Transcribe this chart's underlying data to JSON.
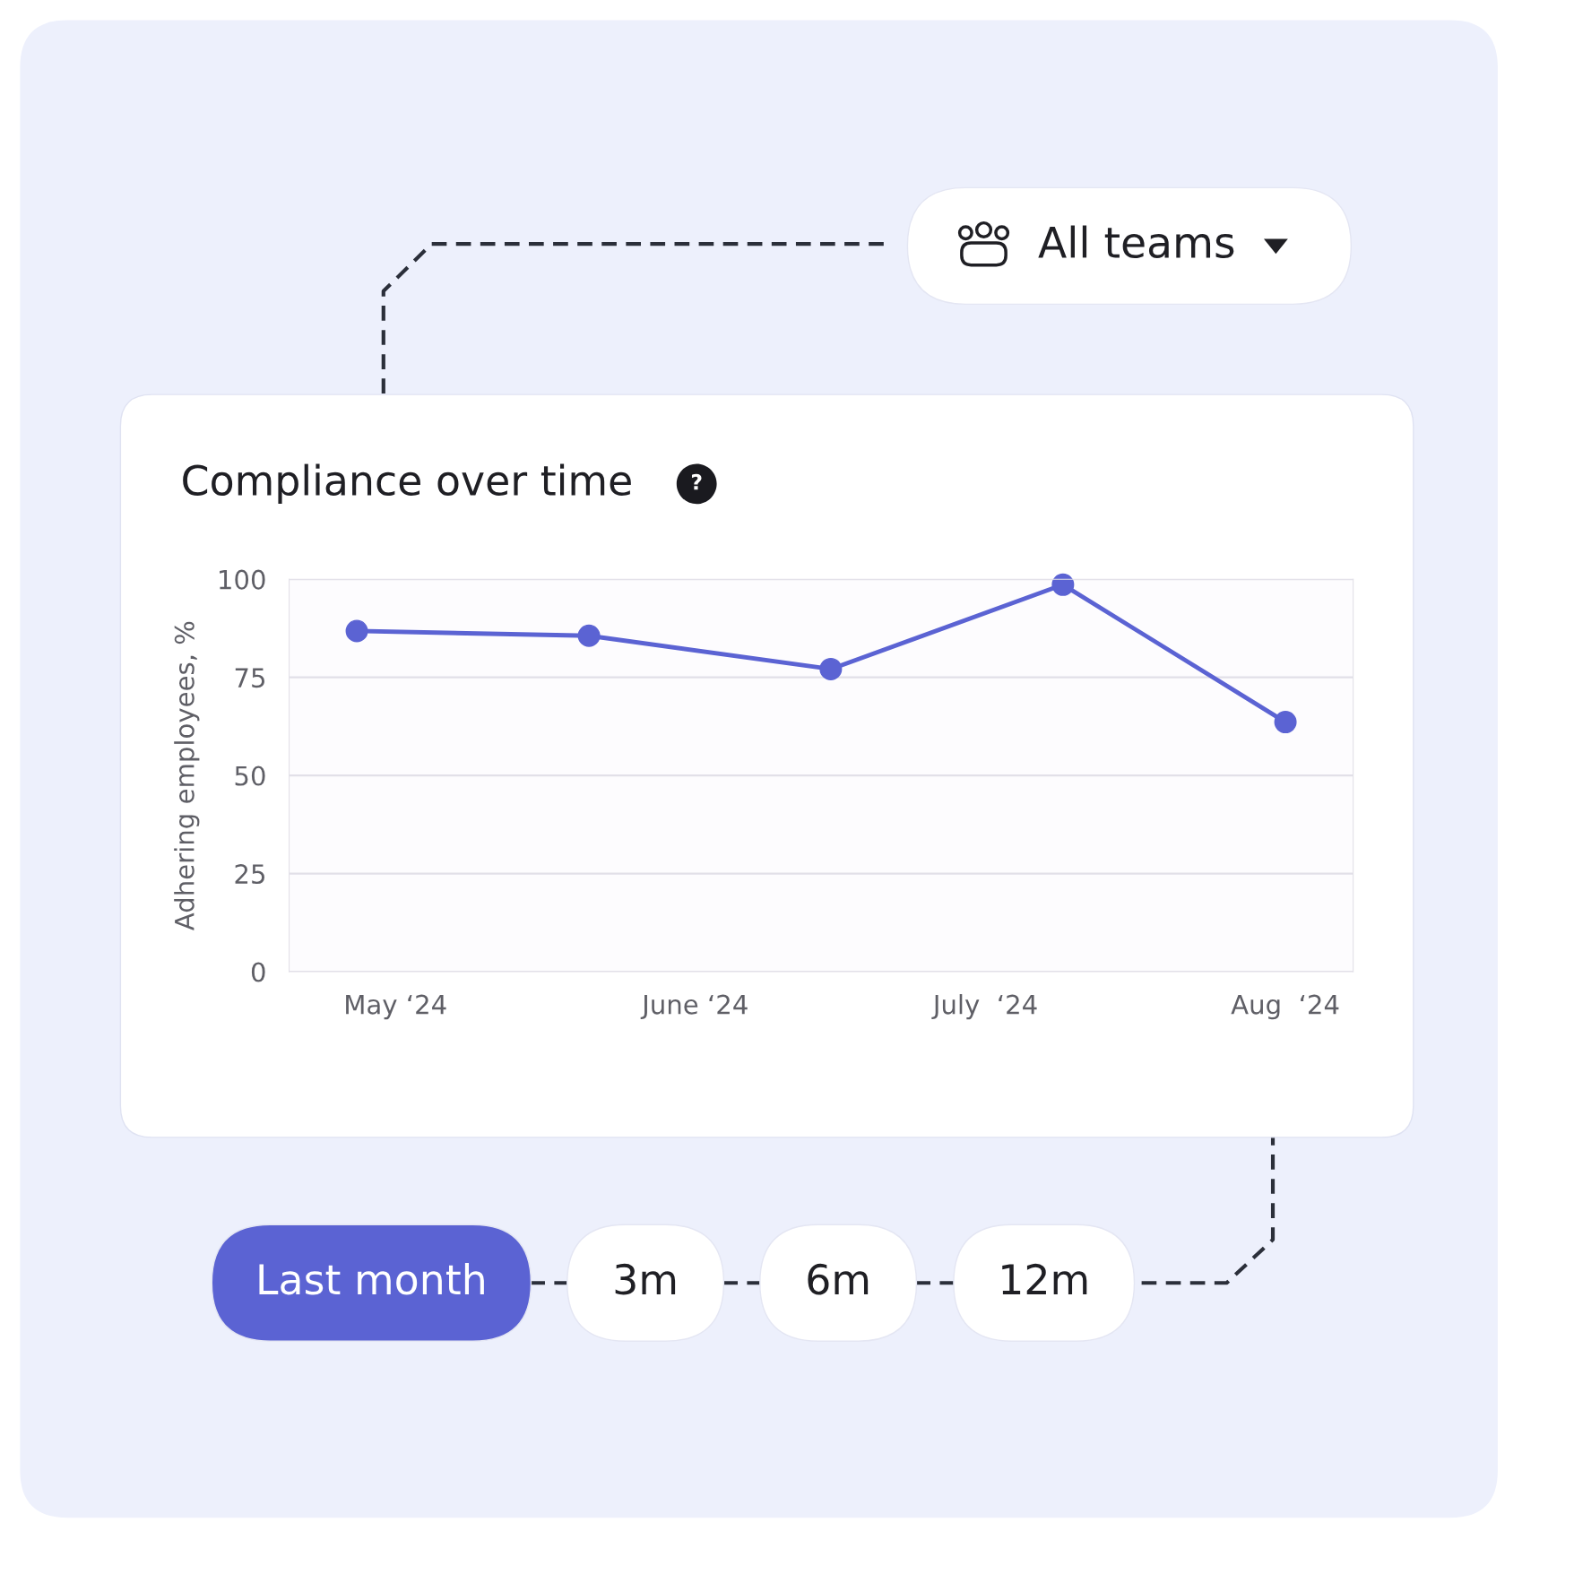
{
  "chart_data": {
    "type": "line",
    "title": "Compliance over time",
    "ylabel": "Adhering employees, %",
    "x": [
      "2024-04-27",
      "2024-05-21",
      "2024-06-15",
      "2024-07-09",
      "2024-08-01"
    ],
    "series": [
      {
        "color": "#5b63d3",
        "values": [
          86.8,
          85.6,
          77.1,
          98.6,
          63.6
        ]
      }
    ],
    "xlim": [
      "2024-04-20",
      "2024-08-08"
    ],
    "xticks": [
      {
        "value": "2024-05-01",
        "label": "May ‘24"
      },
      {
        "value": "2024-06-01",
        "label": "June ‘24"
      },
      {
        "value": "2024-07-01",
        "label": "July  ‘24"
      },
      {
        "value": "2024-08-01",
        "label": "Aug  ‘24"
      }
    ],
    "ylim": [
      0,
      100
    ],
    "yticks": [
      0,
      25,
      50,
      75,
      100
    ],
    "grid": "y",
    "marker": "circle",
    "line_style": "solid",
    "annotations": [
      "?",
      "All teams",
      "Last month",
      "3m",
      "6m",
      "12m"
    ]
  }
}
